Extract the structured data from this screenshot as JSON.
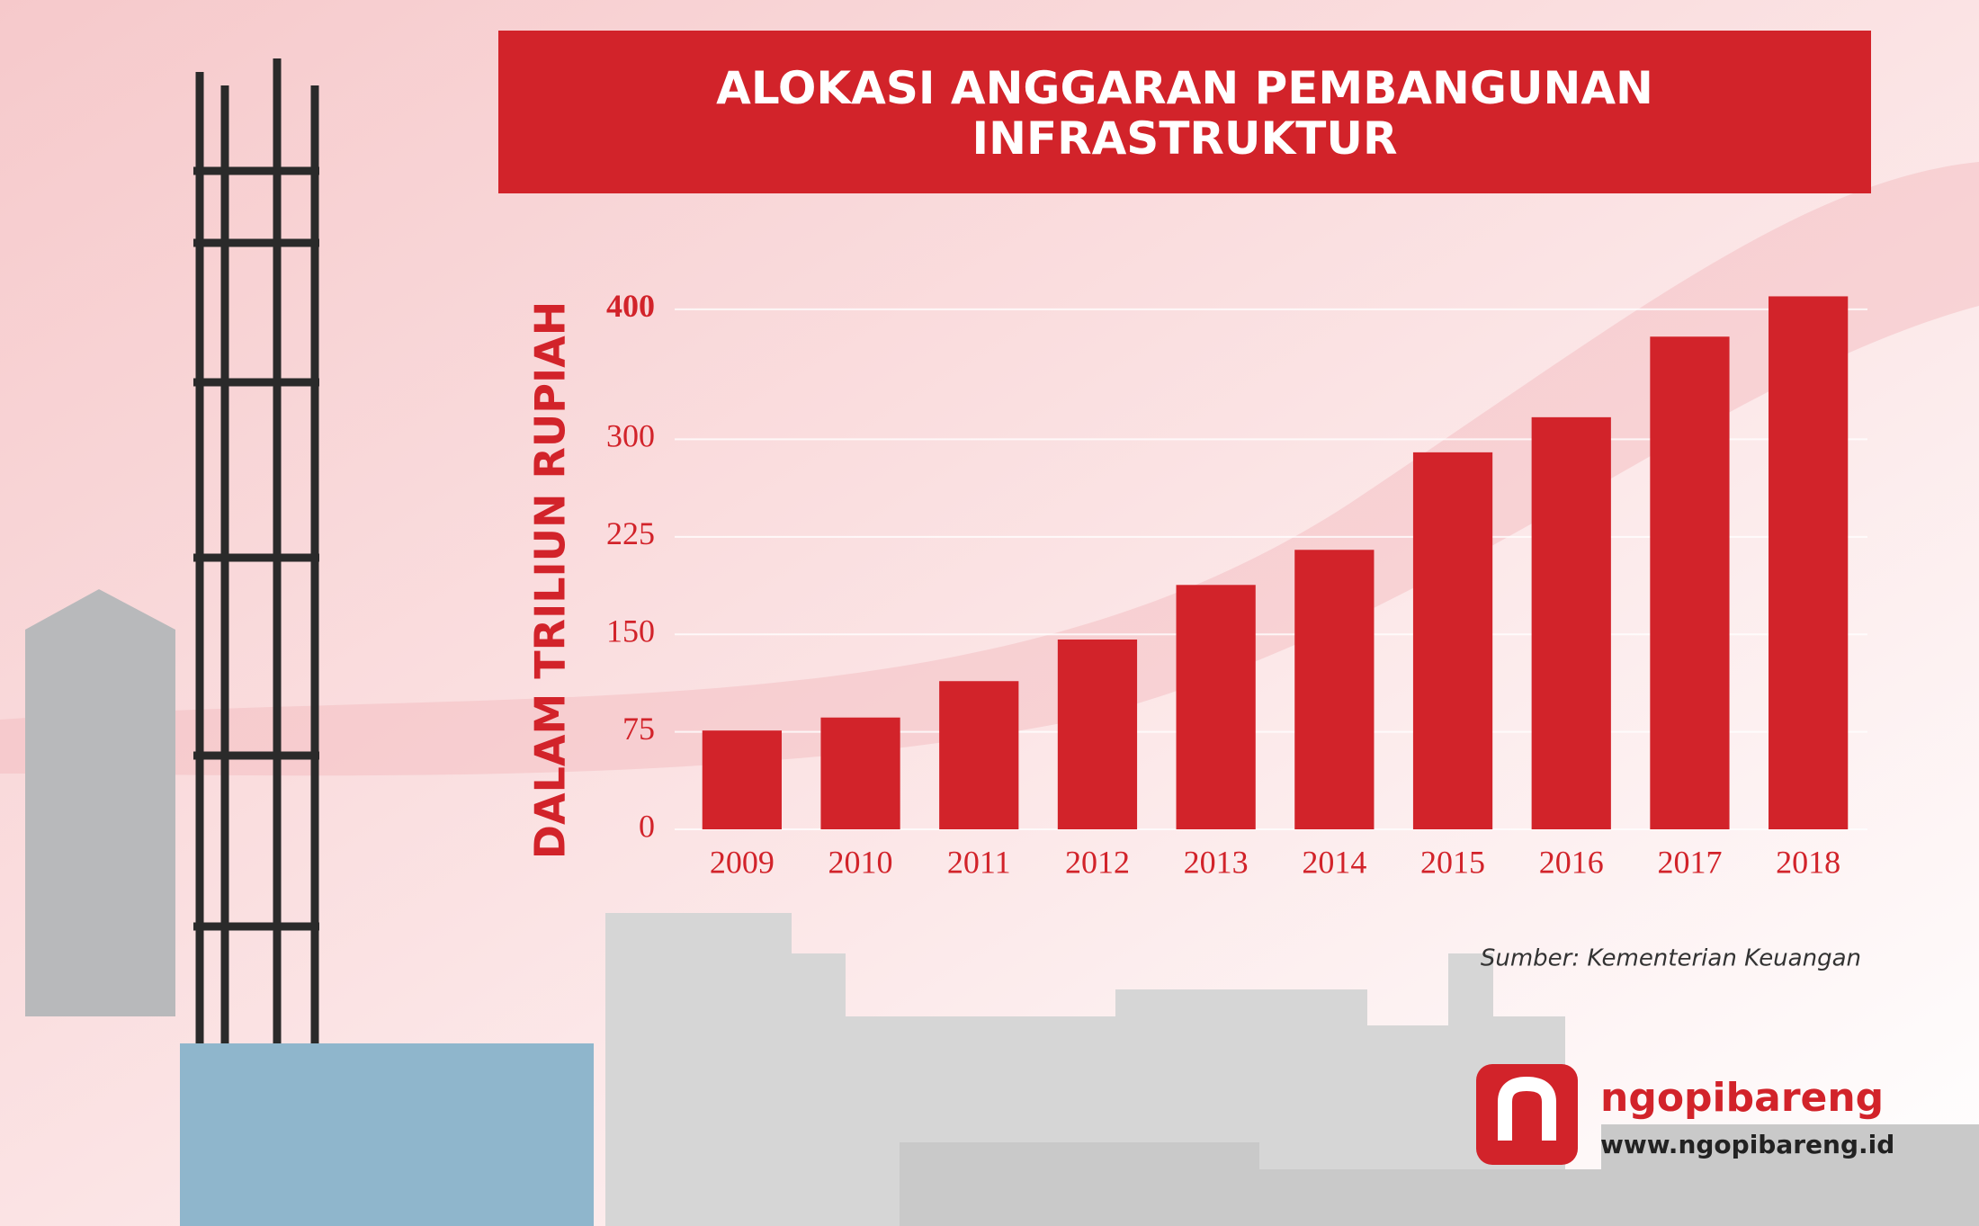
{
  "chart_data": {
    "type": "bar",
    "title": "ALOKASI ANGGARAN PEMBANGUNAN INFRASTRUKTUR",
    "y_label": "DALAM TRILIUN RUPIAH",
    "categories": [
      "2009",
      "2010",
      "2011",
      "2012",
      "2013",
      "2014",
      "2015",
      "2016",
      "2017",
      "2018"
    ],
    "values": [
      76,
      86,
      114,
      146,
      188,
      215,
      290,
      317,
      379,
      410
    ],
    "color": "#d2232a",
    "ylim": [
      0,
      420
    ],
    "yticks": [
      0,
      75,
      150,
      225,
      300,
      400
    ],
    "grid": true,
    "source": "Sumber: Kementerian Keuangan"
  },
  "brand": {
    "name": "ngopibareng",
    "url": "www.ngopibareng.id"
  }
}
